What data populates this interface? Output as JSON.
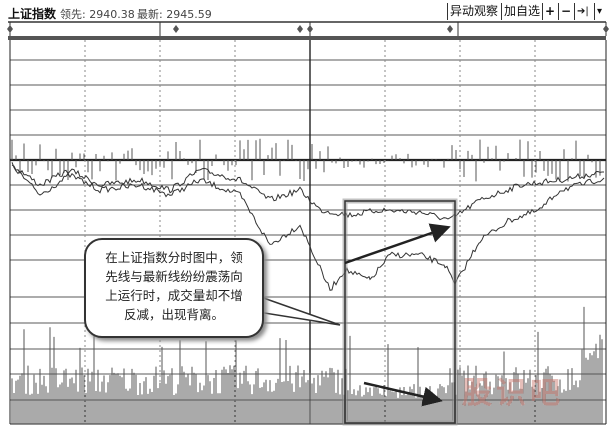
{
  "header": {
    "title": "上证指数",
    "leading_label": "领先: 2940.38",
    "latest_label": "最新: 2945.59"
  },
  "toolbar": {
    "anomaly": "异动观察",
    "add_watch": "加自选",
    "zoom_in": "+",
    "zoom_out": "−",
    "jump_end": "➔|",
    "dropdown": "▾"
  },
  "annotation": {
    "lines": [
      "在上证指数分时图中，领",
      "先线与最新线纷纷震荡向",
      "上运行时，成交量却不增",
      "反减，出现背离。"
    ]
  },
  "watermark": "股识吧",
  "colors": {
    "line": "#333333",
    "grid": "#222222",
    "volume": "#555555",
    "highlight": "#999999"
  }
}
